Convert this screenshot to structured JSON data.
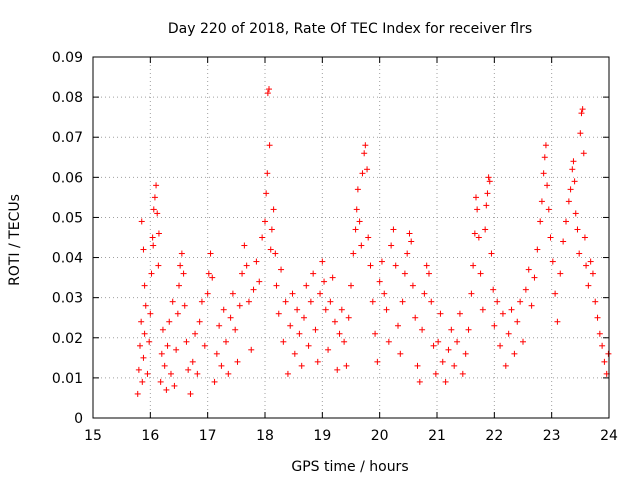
{
  "chart_data": {
    "type": "scatter",
    "title": "Day 220 of 2018, Rate Of TEC Index for receiver flrs",
    "xlabel": "GPS time / hours",
    "ylabel": "ROTI / TECUs",
    "xlim": [
      15,
      24
    ],
    "ylim": [
      0,
      0.09
    ],
    "xticks": [
      "15",
      "16",
      "17",
      "18",
      "19",
      "20",
      "21",
      "22",
      "23",
      "24"
    ],
    "yticks": [
      "0",
      "0.01",
      "0.02",
      "0.03",
      "0.04",
      "0.05",
      "0.06",
      "0.07",
      "0.08",
      "0.09"
    ],
    "grid": true,
    "marker": "+",
    "marker_color": "#ff0000",
    "series": [
      {
        "name": "ROTI",
        "points": [
          [
            15.78,
            0.006
          ],
          [
            15.8,
            0.012
          ],
          [
            15.82,
            0.018
          ],
          [
            15.84,
            0.024
          ],
          [
            15.86,
            0.009
          ],
          [
            15.88,
            0.015
          ],
          [
            15.9,
            0.021
          ],
          [
            15.92,
            0.028
          ],
          [
            15.85,
            0.049
          ],
          [
            15.88,
            0.042
          ],
          [
            15.9,
            0.033
          ],
          [
            15.95,
            0.011
          ],
          [
            15.98,
            0.019
          ],
          [
            16.0,
            0.026
          ],
          [
            16.02,
            0.036
          ],
          [
            16.04,
            0.045
          ],
          [
            16.06,
            0.052
          ],
          [
            16.08,
            0.055
          ],
          [
            16.1,
            0.058
          ],
          [
            16.12,
            0.051
          ],
          [
            16.15,
            0.046
          ],
          [
            16.05,
            0.043
          ],
          [
            16.14,
            0.038
          ],
          [
            16.18,
            0.009
          ],
          [
            16.2,
            0.016
          ],
          [
            16.22,
            0.022
          ],
          [
            16.25,
            0.013
          ],
          [
            16.28,
            0.007
          ],
          [
            16.3,
            0.018
          ],
          [
            16.33,
            0.024
          ],
          [
            16.36,
            0.011
          ],
          [
            16.39,
            0.029
          ],
          [
            16.42,
            0.008
          ],
          [
            16.45,
            0.017
          ],
          [
            16.48,
            0.026
          ],
          [
            16.5,
            0.033
          ],
          [
            16.52,
            0.038
          ],
          [
            16.55,
            0.041
          ],
          [
            16.58,
            0.036
          ],
          [
            16.6,
            0.028
          ],
          [
            16.63,
            0.019
          ],
          [
            16.66,
            0.012
          ],
          [
            16.7,
            0.006
          ],
          [
            16.74,
            0.014
          ],
          [
            16.78,
            0.021
          ],
          [
            16.82,
            0.011
          ],
          [
            16.86,
            0.024
          ],
          [
            16.9,
            0.029
          ],
          [
            16.95,
            0.018
          ],
          [
            17.0,
            0.031
          ],
          [
            17.02,
            0.036
          ],
          [
            17.05,
            0.041
          ],
          [
            17.08,
            0.035
          ],
          [
            17.12,
            0.009
          ],
          [
            17.16,
            0.016
          ],
          [
            17.2,
            0.023
          ],
          [
            17.24,
            0.013
          ],
          [
            17.28,
            0.027
          ],
          [
            17.32,
            0.019
          ],
          [
            17.36,
            0.011
          ],
          [
            17.4,
            0.025
          ],
          [
            17.44,
            0.031
          ],
          [
            17.48,
            0.022
          ],
          [
            17.52,
            0.014
          ],
          [
            17.56,
            0.028
          ],
          [
            17.6,
            0.036
          ],
          [
            17.64,
            0.043
          ],
          [
            17.68,
            0.038
          ],
          [
            17.72,
            0.029
          ],
          [
            17.76,
            0.017
          ],
          [
            17.8,
            0.032
          ],
          [
            17.85,
            0.039
          ],
          [
            17.9,
            0.034
          ],
          [
            17.95,
            0.045
          ],
          [
            18.0,
            0.049
          ],
          [
            18.02,
            0.056
          ],
          [
            18.04,
            0.061
          ],
          [
            18.05,
            0.081
          ],
          [
            18.07,
            0.082
          ],
          [
            18.08,
            0.068
          ],
          [
            18.1,
            0.042
          ],
          [
            18.12,
            0.047
          ],
          [
            18.15,
            0.052
          ],
          [
            18.18,
            0.041
          ],
          [
            18.2,
            0.033
          ],
          [
            18.24,
            0.026
          ],
          [
            18.28,
            0.037
          ],
          [
            18.32,
            0.019
          ],
          [
            18.36,
            0.029
          ],
          [
            18.4,
            0.011
          ],
          [
            18.44,
            0.023
          ],
          [
            18.48,
            0.031
          ],
          [
            18.52,
            0.016
          ],
          [
            18.56,
            0.027
          ],
          [
            18.6,
            0.021
          ],
          [
            18.64,
            0.013
          ],
          [
            18.68,
            0.025
          ],
          [
            18.72,
            0.033
          ],
          [
            18.76,
            0.018
          ],
          [
            18.8,
            0.029
          ],
          [
            18.84,
            0.036
          ],
          [
            18.88,
            0.022
          ],
          [
            18.92,
            0.014
          ],
          [
            18.96,
            0.031
          ],
          [
            19.0,
            0.039
          ],
          [
            19.03,
            0.034
          ],
          [
            19.06,
            0.027
          ],
          [
            19.1,
            0.017
          ],
          [
            19.14,
            0.029
          ],
          [
            19.18,
            0.035
          ],
          [
            19.22,
            0.024
          ],
          [
            19.26,
            0.012
          ],
          [
            19.3,
            0.021
          ],
          [
            19.34,
            0.027
          ],
          [
            19.38,
            0.019
          ],
          [
            19.42,
            0.013
          ],
          [
            19.46,
            0.025
          ],
          [
            19.5,
            0.033
          ],
          [
            19.54,
            0.041
          ],
          [
            19.58,
            0.047
          ],
          [
            19.6,
            0.052
          ],
          [
            19.62,
            0.057
          ],
          [
            19.65,
            0.049
          ],
          [
            19.68,
            0.043
          ],
          [
            19.7,
            0.061
          ],
          [
            19.73,
            0.066
          ],
          [
            19.75,
            0.068
          ],
          [
            19.78,
            0.062
          ],
          [
            19.8,
            0.045
          ],
          [
            19.84,
            0.038
          ],
          [
            19.88,
            0.029
          ],
          [
            19.92,
            0.021
          ],
          [
            19.96,
            0.014
          ],
          [
            20.0,
            0.034
          ],
          [
            20.04,
            0.039
          ],
          [
            20.08,
            0.031
          ],
          [
            20.12,
            0.027
          ],
          [
            20.16,
            0.019
          ],
          [
            20.2,
            0.043
          ],
          [
            20.24,
            0.047
          ],
          [
            20.28,
            0.038
          ],
          [
            20.32,
            0.023
          ],
          [
            20.36,
            0.016
          ],
          [
            20.4,
            0.029
          ],
          [
            20.44,
            0.036
          ],
          [
            20.48,
            0.041
          ],
          [
            20.52,
            0.046
          ],
          [
            20.55,
            0.044
          ],
          [
            20.58,
            0.033
          ],
          [
            20.62,
            0.025
          ],
          [
            20.66,
            0.013
          ],
          [
            20.7,
            0.009
          ],
          [
            20.74,
            0.022
          ],
          [
            20.78,
            0.031
          ],
          [
            20.82,
            0.038
          ],
          [
            20.86,
            0.036
          ],
          [
            20.9,
            0.029
          ],
          [
            20.94,
            0.018
          ],
          [
            20.98,
            0.011
          ],
          [
            21.02,
            0.019
          ],
          [
            21.06,
            0.026
          ],
          [
            21.1,
            0.014
          ],
          [
            21.15,
            0.009
          ],
          [
            21.2,
            0.017
          ],
          [
            21.25,
            0.022
          ],
          [
            21.3,
            0.013
          ],
          [
            21.35,
            0.019
          ],
          [
            21.4,
            0.026
          ],
          [
            21.45,
            0.011
          ],
          [
            21.5,
            0.016
          ],
          [
            21.55,
            0.022
          ],
          [
            21.6,
            0.031
          ],
          [
            21.63,
            0.038
          ],
          [
            21.66,
            0.046
          ],
          [
            21.68,
            0.055
          ],
          [
            21.7,
            0.052
          ],
          [
            21.73,
            0.045
          ],
          [
            21.76,
            0.036
          ],
          [
            21.8,
            0.027
          ],
          [
            21.84,
            0.047
          ],
          [
            21.86,
            0.053
          ],
          [
            21.88,
            0.056
          ],
          [
            21.9,
            0.06
          ],
          [
            21.92,
            0.059
          ],
          [
            21.95,
            0.041
          ],
          [
            21.98,
            0.032
          ],
          [
            22.0,
            0.023
          ],
          [
            22.05,
            0.029
          ],
          [
            22.1,
            0.018
          ],
          [
            22.15,
            0.026
          ],
          [
            22.2,
            0.013
          ],
          [
            22.25,
            0.021
          ],
          [
            22.3,
            0.027
          ],
          [
            22.35,
            0.016
          ],
          [
            22.4,
            0.024
          ],
          [
            22.45,
            0.029
          ],
          [
            22.5,
            0.019
          ],
          [
            22.55,
            0.032
          ],
          [
            22.6,
            0.037
          ],
          [
            22.65,
            0.028
          ],
          [
            22.7,
            0.035
          ],
          [
            22.75,
            0.042
          ],
          [
            22.8,
            0.049
          ],
          [
            22.83,
            0.054
          ],
          [
            22.86,
            0.061
          ],
          [
            22.88,
            0.065
          ],
          [
            22.9,
            0.068
          ],
          [
            22.92,
            0.058
          ],
          [
            22.95,
            0.052
          ],
          [
            22.98,
            0.045
          ],
          [
            23.02,
            0.039
          ],
          [
            23.06,
            0.031
          ],
          [
            23.1,
            0.024
          ],
          [
            23.15,
            0.036
          ],
          [
            23.2,
            0.044
          ],
          [
            23.25,
            0.049
          ],
          [
            23.3,
            0.054
          ],
          [
            23.33,
            0.057
          ],
          [
            23.36,
            0.062
          ],
          [
            23.38,
            0.064
          ],
          [
            23.4,
            0.059
          ],
          [
            23.42,
            0.051
          ],
          [
            23.45,
            0.047
          ],
          [
            23.48,
            0.041
          ],
          [
            23.5,
            0.071
          ],
          [
            23.52,
            0.076
          ],
          [
            23.54,
            0.077
          ],
          [
            23.56,
            0.066
          ],
          [
            23.58,
            0.045
          ],
          [
            23.6,
            0.038
          ],
          [
            23.64,
            0.033
          ],
          [
            23.68,
            0.039
          ],
          [
            23.72,
            0.036
          ],
          [
            23.76,
            0.029
          ],
          [
            23.8,
            0.025
          ],
          [
            23.84,
            0.021
          ],
          [
            23.88,
            0.018
          ],
          [
            23.92,
            0.014
          ],
          [
            23.96,
            0.011
          ],
          [
            23.99,
            0.016
          ]
        ]
      }
    ]
  }
}
